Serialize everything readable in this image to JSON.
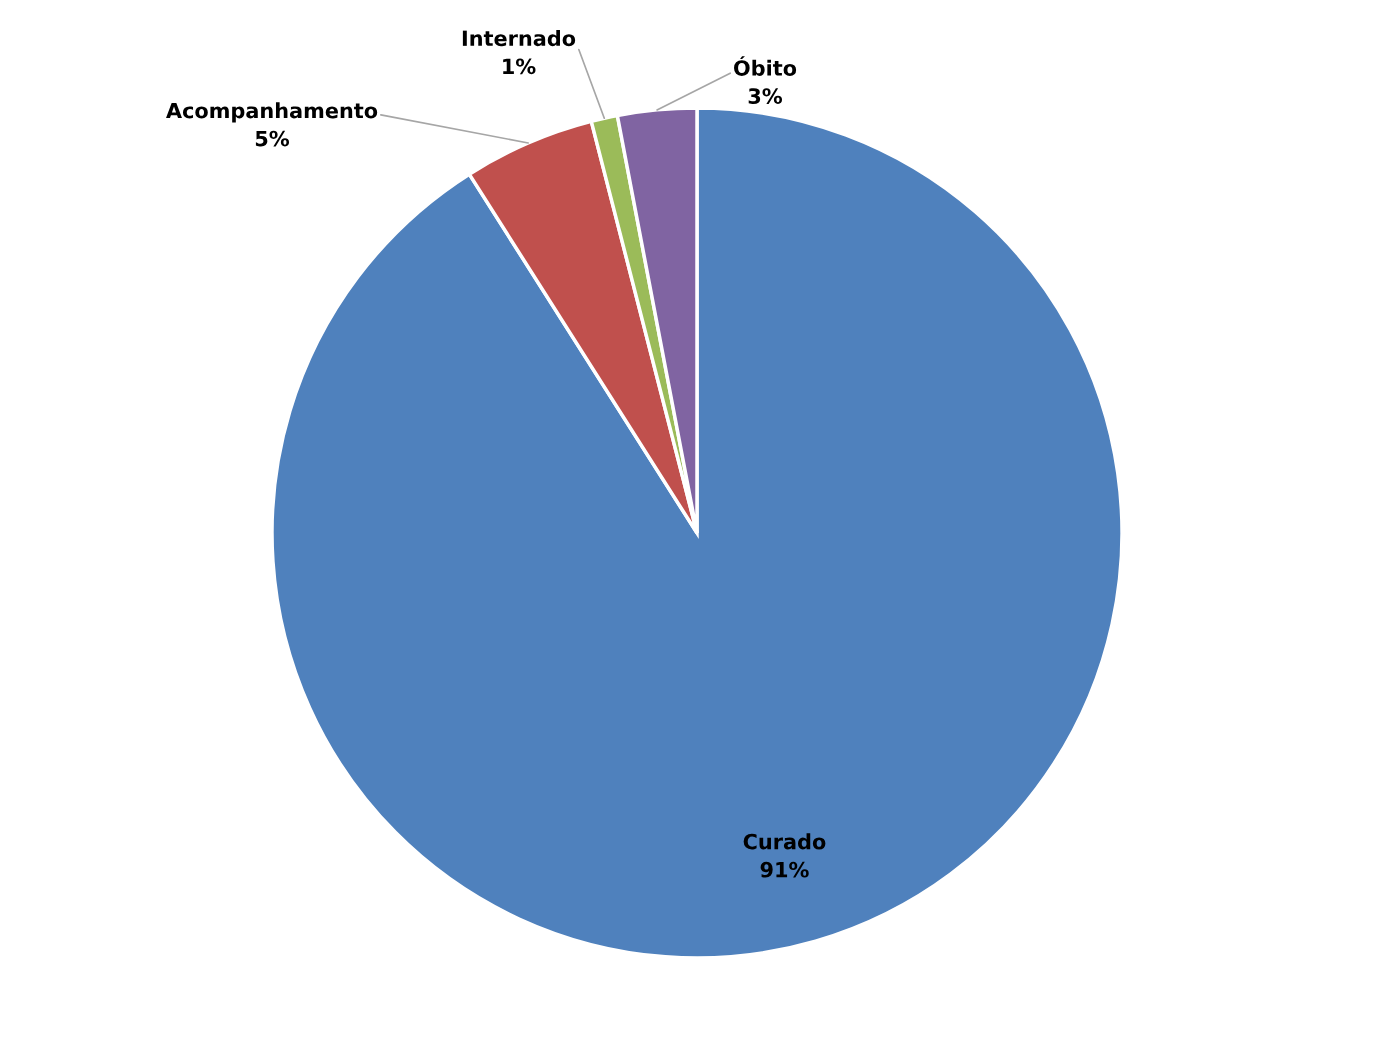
{
  "chart_data": {
    "type": "pie",
    "categories": [
      "Curado",
      "Acompanhamento",
      "Internado",
      "Óbito"
    ],
    "values": [
      91,
      5,
      1,
      3
    ],
    "colors": [
      "#4f81bd",
      "#c0504d",
      "#9bbb59",
      "#8064a2"
    ],
    "value_labels": [
      "91%",
      "5%",
      "1%",
      "3%"
    ]
  }
}
